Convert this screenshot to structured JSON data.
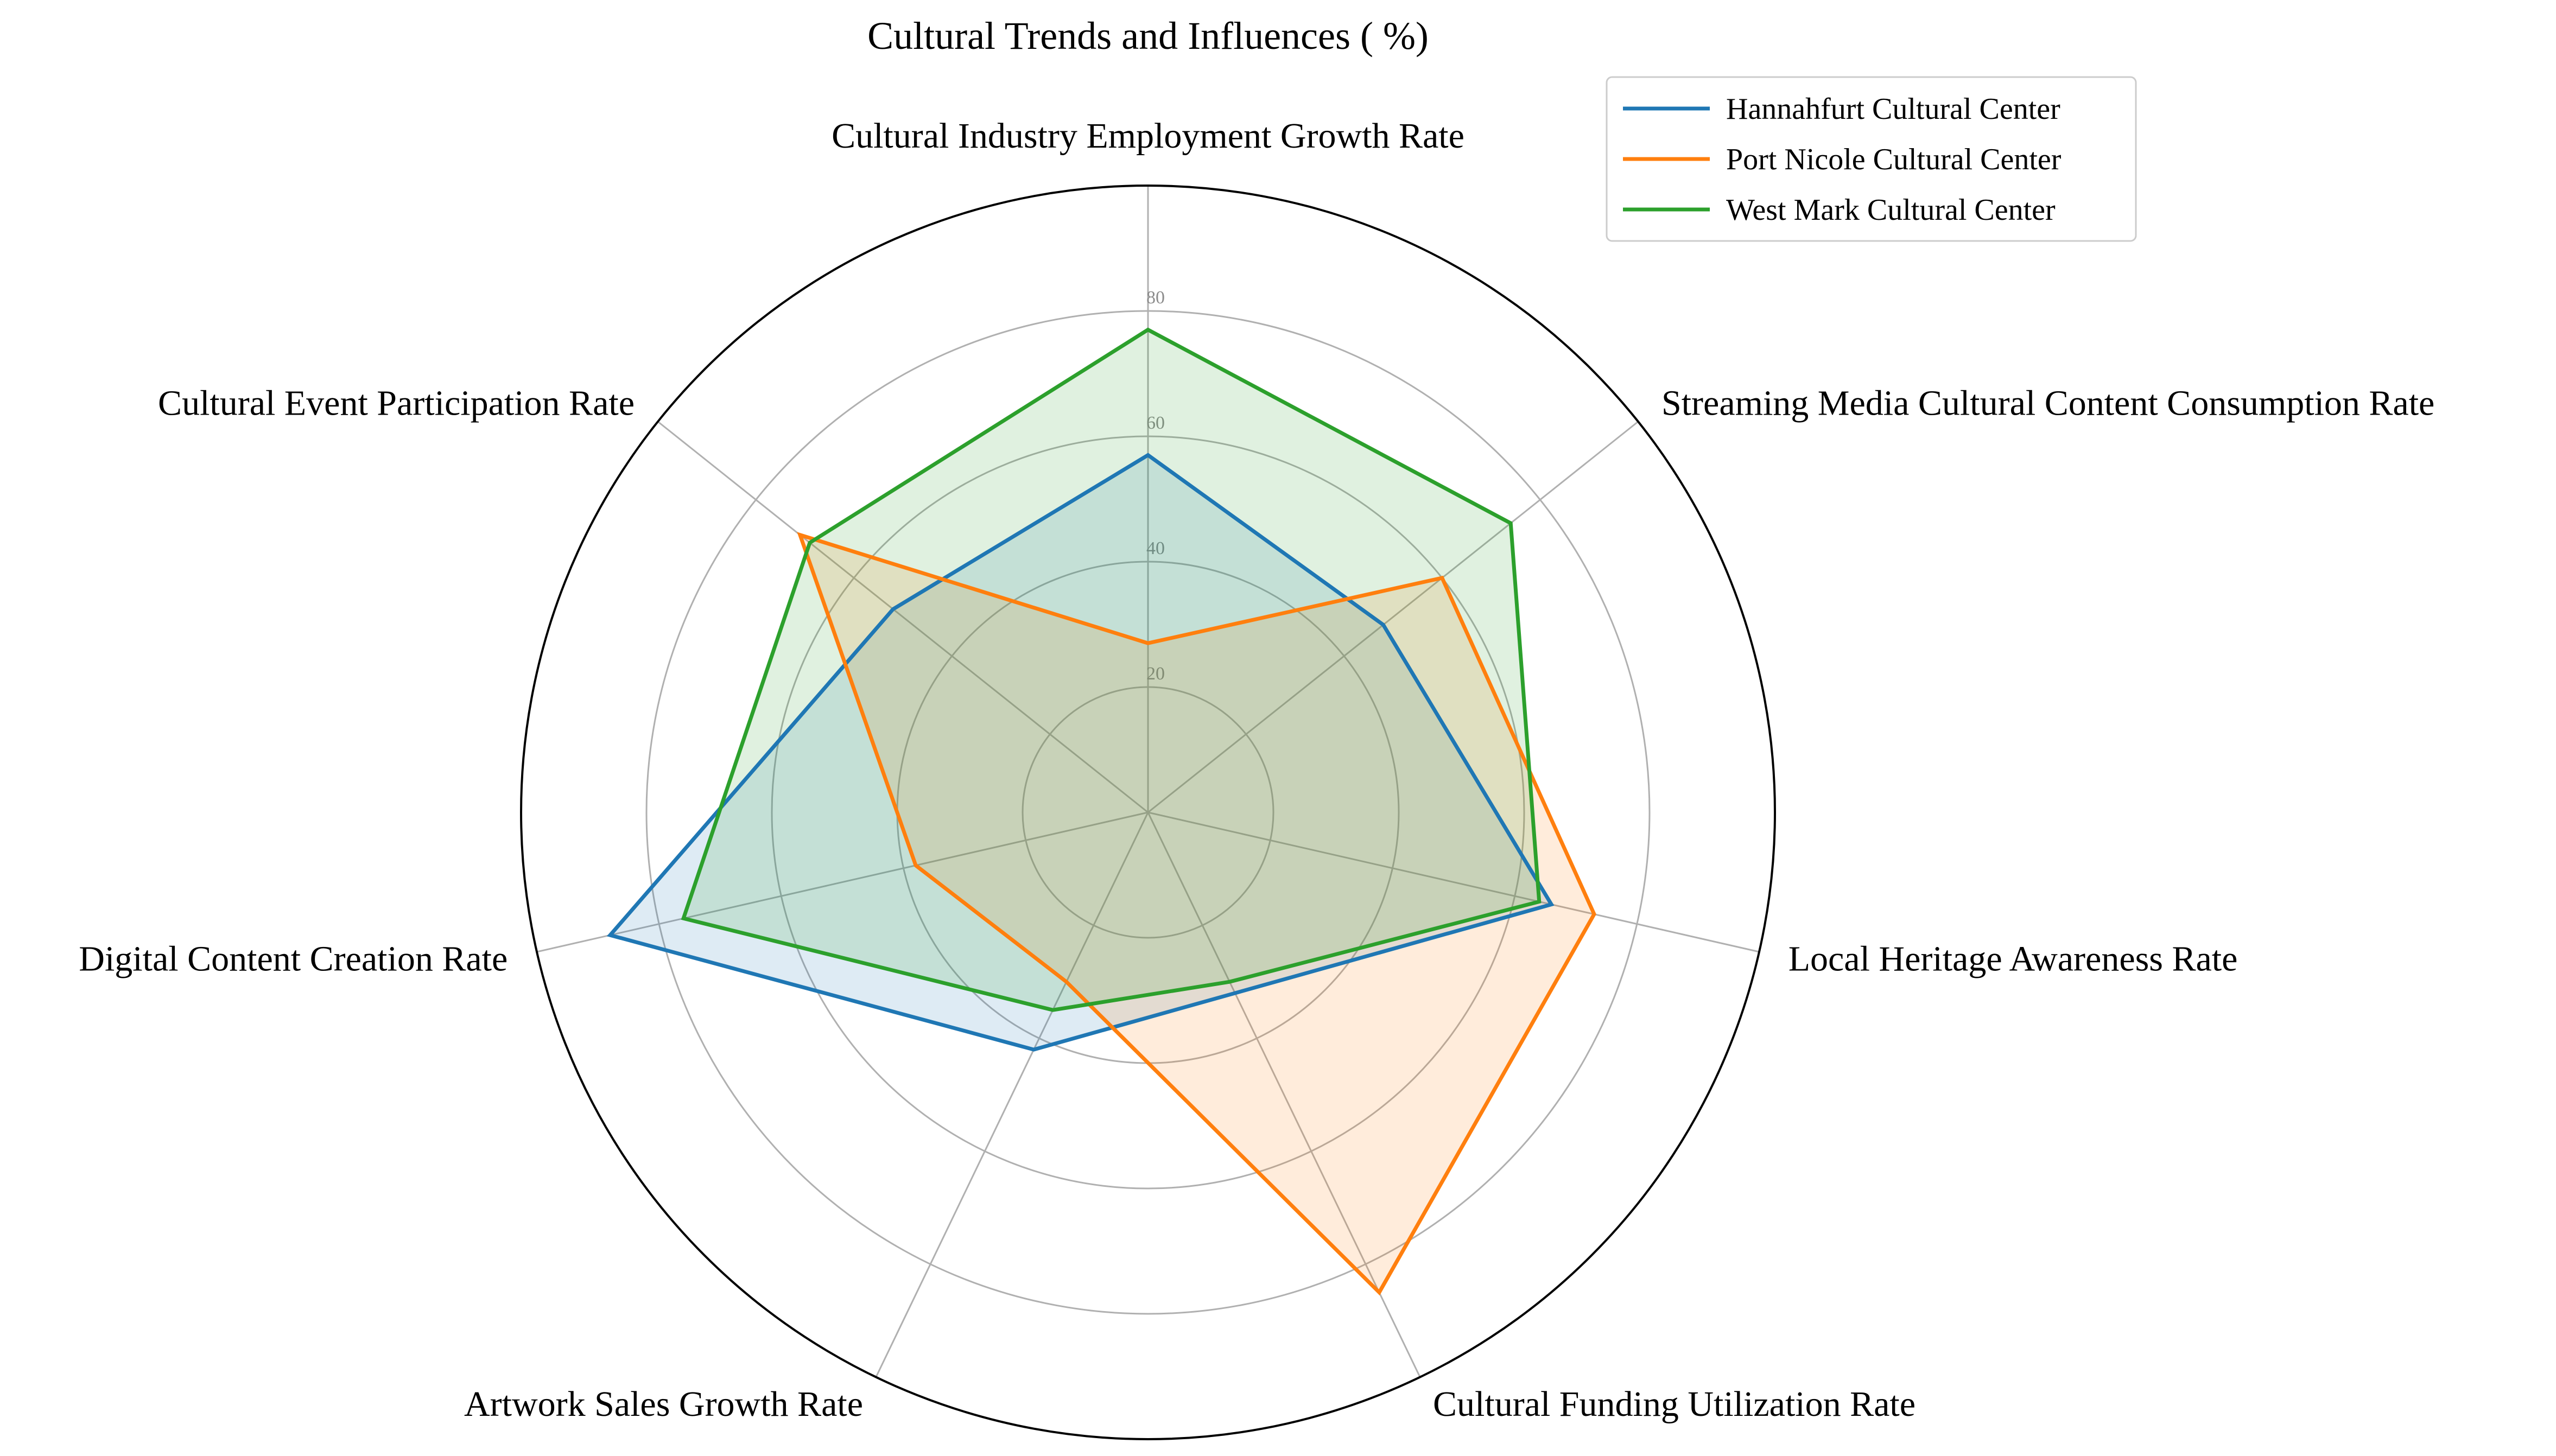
{
  "chart_data": {
    "type": "radar",
    "title": "Cultural Trends and Influences ( %)",
    "axes": [
      "Cultural Industry Employment Growth Rate",
      "Streaming Media Cultural Content Consumption Rate",
      "Local Heritage Awareness Rate",
      "Cultural Funding Utilization Rate",
      "Artwork Sales Growth Rate",
      "Digital Content Creation Rate",
      "Cultural Event Participation Rate"
    ],
    "rlim": [
      0,
      100
    ],
    "rticks": [
      20,
      40,
      60,
      80
    ],
    "grid": true,
    "legend_position": "top-right",
    "series": [
      {
        "name": "Hannahfurt Cultural Center",
        "color": "#1f77b4",
        "values": [
          57,
          48,
          66,
          32,
          42,
          88,
          52
        ]
      },
      {
        "name": "Port Nicole Cultural Center",
        "color": "#ff7f0e",
        "values": [
          27,
          60,
          73,
          85,
          30,
          38,
          71
        ]
      },
      {
        "name": "West Mark Cultural Center",
        "color": "#2ca02c",
        "values": [
          77,
          74,
          64,
          30,
          35,
          76,
          69
        ]
      }
    ]
  }
}
